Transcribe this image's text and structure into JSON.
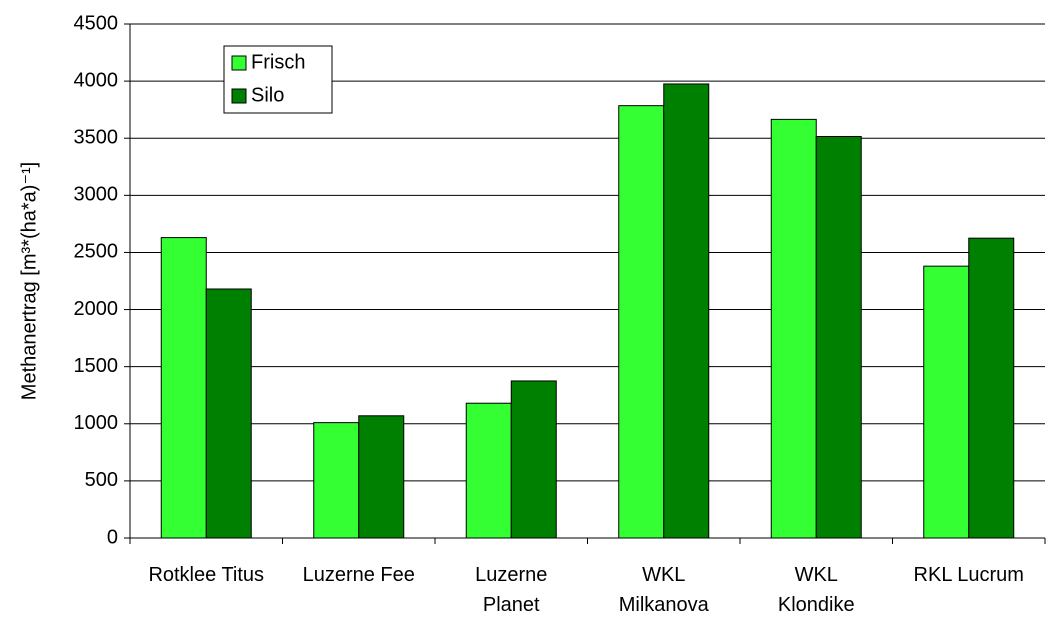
{
  "chart_data": {
    "type": "bar",
    "y_label": "Methanertrag [m³*(ha*a)⁻¹]",
    "categories": [
      "Rotklee Titus",
      "Luzerne Fee",
      "Luzerne\nPlanet",
      "WKL\nMilkanova",
      "WKL\nKlondike",
      "RKL Lucrum"
    ],
    "series": [
      {
        "name": "Frisch",
        "color": "#33ff33",
        "values": [
          2630,
          1010,
          1180,
          3785,
          3665,
          2380
        ]
      },
      {
        "name": "Silo",
        "color": "#008000",
        "values": [
          2180,
          1070,
          1375,
          3975,
          3515,
          2625
        ]
      }
    ],
    "ylim": [
      0,
      4500
    ],
    "yticks": [
      0,
      500,
      1000,
      1500,
      2000,
      2500,
      3000,
      3500,
      4000,
      4500
    ],
    "grid": true,
    "legend": "upper left"
  }
}
